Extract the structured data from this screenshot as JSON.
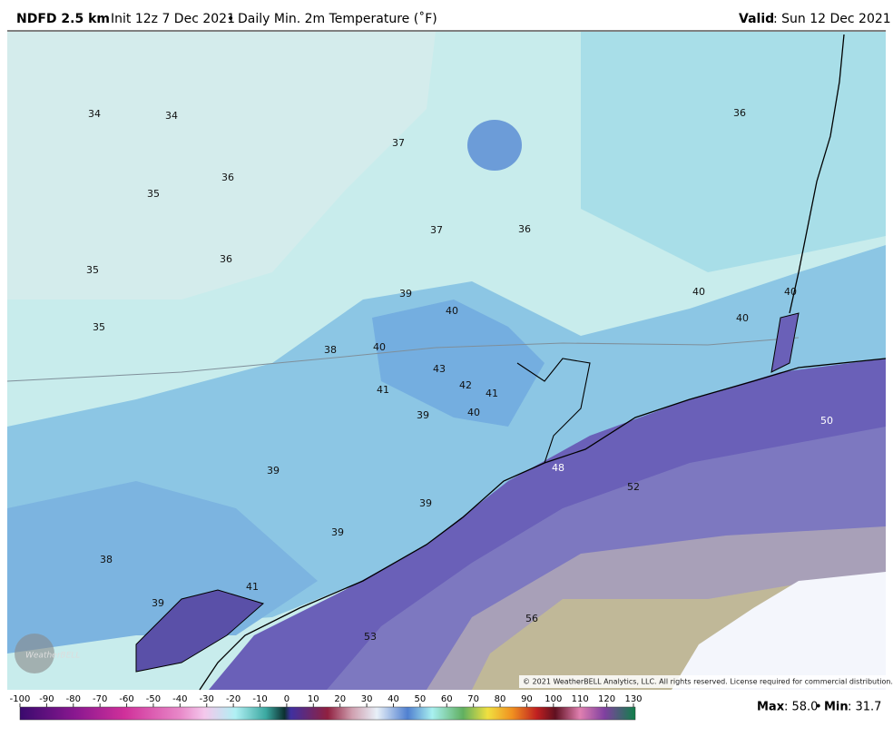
{
  "header": {
    "model": "NDFD 2.5 km",
    "init": "Init 12z 7 Dec 2021",
    "separator": "•",
    "product": "Daily Min. 2m Temperature (˚F)",
    "valid_label": "Valid",
    "valid": ": Sun 12 Dec 2021"
  },
  "map": {
    "labels": [
      34,
      34,
      36,
      35,
      37,
      36,
      37,
      36,
      35,
      36,
      39,
      40,
      40,
      40,
      40,
      35,
      38,
      40,
      43,
      42,
      41,
      41,
      39,
      40,
      50,
      48,
      52,
      39,
      39,
      39,
      38,
      41,
      39,
      56,
      53
    ],
    "logo": "WeatherBELL",
    "copyright": "© 2021 WeatherBELL Analytics, LLC. All rights reserved. License required for commercial distribution."
  },
  "colorbar": {
    "ticks": [
      -100,
      -90,
      -80,
      -70,
      -60,
      -50,
      -40,
      -30,
      -20,
      -10,
      0,
      10,
      20,
      30,
      40,
      50,
      60,
      70,
      80,
      90,
      100,
      110,
      120,
      130
    ]
  },
  "footer": {
    "max_label": "Max",
    "max": ": 58.0",
    "separator": "•",
    "min_label": "Min",
    "min": ": 31.7"
  }
}
